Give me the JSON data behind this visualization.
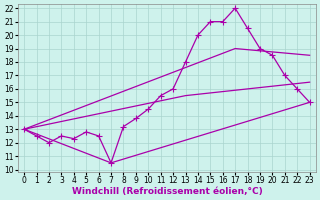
{
  "xlabel": "Windchill (Refroidissement éolien,°C)",
  "background_color": "#cef2ec",
  "grid_color": "#aad4ce",
  "line_color": "#aa00aa",
  "xlim": [
    0,
    23
  ],
  "ylim": [
    10,
    22
  ],
  "xticks": [
    0,
    1,
    2,
    3,
    4,
    5,
    6,
    7,
    8,
    9,
    10,
    11,
    12,
    13,
    14,
    15,
    16,
    17,
    18,
    19,
    20,
    21,
    22,
    23
  ],
  "yticks": [
    10,
    11,
    12,
    13,
    14,
    15,
    16,
    17,
    18,
    19,
    20,
    21,
    22
  ],
  "line1_x": [
    0,
    1,
    2,
    3,
    4,
    5,
    6,
    7,
    8,
    9,
    10,
    11,
    12,
    13,
    14,
    15,
    16,
    17,
    18,
    19,
    20,
    21,
    22,
    23
  ],
  "line1_y": [
    13.0,
    12.5,
    12.0,
    12.5,
    12.3,
    12.8,
    12.5,
    10.5,
    13.2,
    13.8,
    14.5,
    15.5,
    16.0,
    18.0,
    20.0,
    21.0,
    21.0,
    22.0,
    20.5,
    19.0,
    18.5,
    17.0,
    16.0,
    15.0
  ],
  "line2_x": [
    0,
    7,
    23
  ],
  "line2_y": [
    13.0,
    10.5,
    15.0
  ],
  "line3_x": [
    0,
    13,
    23
  ],
  "line3_y": [
    13.0,
    15.5,
    16.5
  ],
  "line4_x": [
    0,
    17,
    23
  ],
  "line4_y": [
    13.0,
    19.0,
    18.5
  ],
  "marker": "P",
  "marker_size": 3,
  "linewidth": 0.9,
  "tick_fontsize": 5.5,
  "label_fontsize": 6.5
}
